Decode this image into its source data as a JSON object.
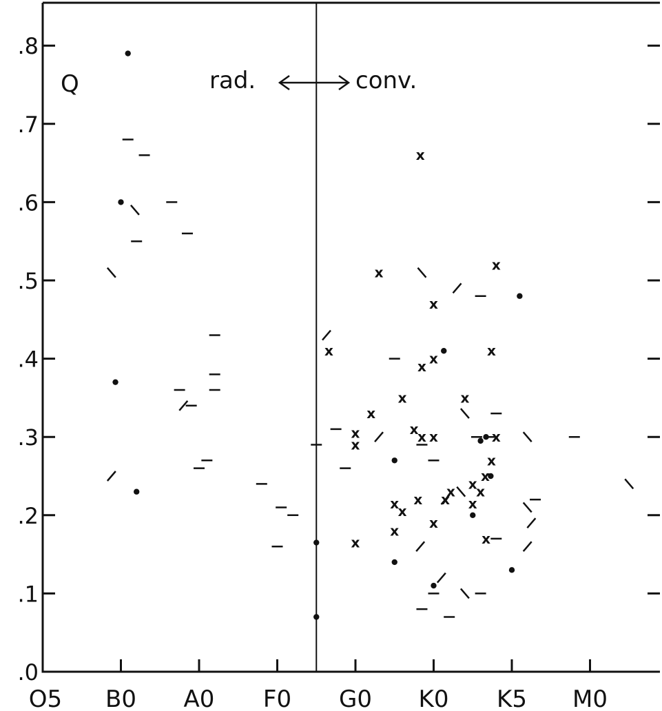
{
  "chart_data": {
    "type": "scatter",
    "title": "",
    "xlabel": "",
    "ylabel": "",
    "x_categories": [
      "O5",
      "B0",
      "A0",
      "F0",
      "G0",
      "K0",
      "K5",
      "M0"
    ],
    "ylim": [
      0.0,
      0.85
    ],
    "yticks": [
      0.0,
      0.1,
      0.2,
      0.3,
      0.4,
      0.5,
      0.6,
      0.7,
      0.8
    ],
    "ytick_labels": [
      ".0",
      ".1",
      ".2",
      ".3",
      ".4",
      ".5",
      ".6",
      ".7",
      ".8"
    ],
    "divider_x": 3.5,
    "annotations": {
      "q_label": "Q",
      "rad_label": "rad.",
      "conv_label": "conv."
    },
    "legend": "none",
    "grid": false,
    "markers": {
      "dot": "dot",
      "cross": "x",
      "dash": "horizontal-dash",
      "slash": "slash",
      "backslash": "backslash"
    },
    "series": [
      {
        "marker": "dot",
        "points": [
          [
            1.09,
            0.79
          ],
          [
            1.0,
            0.6
          ],
          [
            0.93,
            0.37
          ],
          [
            1.2,
            0.23
          ],
          [
            3.5,
            0.165
          ],
          [
            3.5,
            0.07
          ],
          [
            4.5,
            0.27
          ],
          [
            4.5,
            0.14
          ],
          [
            5.0,
            0.11
          ],
          [
            5.13,
            0.41
          ],
          [
            5.5,
            0.2
          ],
          [
            5.67,
            0.3
          ],
          [
            5.73,
            0.25
          ],
          [
            6.0,
            0.13
          ],
          [
            6.1,
            0.48
          ],
          [
            5.6,
            0.295
          ]
        ]
      },
      {
        "marker": "cross",
        "points": [
          [
            3.66,
            0.41
          ],
          [
            4.0,
            0.305
          ],
          [
            4.0,
            0.29
          ],
          [
            4.0,
            0.165
          ],
          [
            4.2,
            0.33
          ],
          [
            4.3,
            0.51
          ],
          [
            4.5,
            0.215
          ],
          [
            4.5,
            0.18
          ],
          [
            4.6,
            0.205
          ],
          [
            4.6,
            0.35
          ],
          [
            4.75,
            0.31
          ],
          [
            4.8,
            0.22
          ],
          [
            4.83,
            0.66
          ],
          [
            4.85,
            0.39
          ],
          [
            4.85,
            0.3
          ],
          [
            5.0,
            0.4
          ],
          [
            5.0,
            0.47
          ],
          [
            5.0,
            0.3
          ],
          [
            5.0,
            0.19
          ],
          [
            5.15,
            0.22
          ],
          [
            5.22,
            0.23
          ],
          [
            5.4,
            0.35
          ],
          [
            5.5,
            0.24
          ],
          [
            5.5,
            0.215
          ],
          [
            5.6,
            0.23
          ],
          [
            5.66,
            0.25
          ],
          [
            5.74,
            0.41
          ],
          [
            5.74,
            0.27
          ],
          [
            5.67,
            0.17
          ],
          [
            5.8,
            0.52
          ],
          [
            5.8,
            0.3
          ]
        ]
      },
      {
        "marker": "dash",
        "points": [
          [
            1.09,
            0.68
          ],
          [
            1.2,
            0.55
          ],
          [
            1.3,
            0.66
          ],
          [
            1.65,
            0.6
          ],
          [
            1.85,
            0.56
          ],
          [
            1.75,
            0.36
          ],
          [
            1.9,
            0.34
          ],
          [
            2.2,
            0.43
          ],
          [
            2.2,
            0.38
          ],
          [
            2.2,
            0.36
          ],
          [
            2.0,
            0.26
          ],
          [
            2.1,
            0.27
          ],
          [
            2.8,
            0.24
          ],
          [
            3.05,
            0.21
          ],
          [
            3.2,
            0.2
          ],
          [
            3.0,
            0.16
          ],
          [
            3.5,
            0.29
          ],
          [
            3.75,
            0.31
          ],
          [
            3.87,
            0.26
          ],
          [
            4.5,
            0.4
          ],
          [
            4.85,
            0.29
          ],
          [
            5.0,
            0.27
          ],
          [
            5.0,
            0.1
          ],
          [
            5.2,
            0.07
          ],
          [
            5.6,
            0.48
          ],
          [
            5.55,
            0.3
          ],
          [
            5.75,
            0.3
          ],
          [
            5.6,
            0.1
          ],
          [
            5.8,
            0.33
          ],
          [
            5.8,
            0.17
          ],
          [
            6.3,
            0.22
          ],
          [
            6.8,
            0.3
          ],
          [
            4.85,
            0.08
          ]
        ]
      },
      {
        "marker": "slash",
        "points": [
          [
            3.63,
            0.43
          ],
          [
            0.88,
            0.25
          ],
          [
            1.8,
            0.34
          ],
          [
            4.3,
            0.3
          ],
          [
            5.3,
            0.49
          ],
          [
            5.1,
            0.12
          ],
          [
            5.15,
            0.22
          ],
          [
            4.83,
            0.16
          ],
          [
            6.25,
            0.19
          ],
          [
            6.2,
            0.16
          ]
        ]
      },
      {
        "marker": "backslash",
        "points": [
          [
            0.88,
            0.51
          ],
          [
            1.18,
            0.59
          ],
          [
            4.85,
            0.51
          ],
          [
            5.4,
            0.33
          ],
          [
            5.4,
            0.1
          ],
          [
            6.2,
            0.3
          ],
          [
            6.2,
            0.21
          ],
          [
            7.5,
            0.24
          ],
          [
            5.35,
            0.23
          ]
        ]
      }
    ]
  }
}
